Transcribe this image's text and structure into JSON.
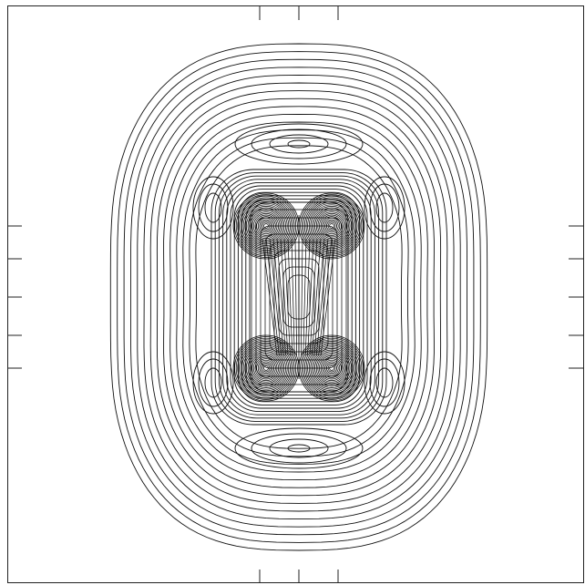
{
  "figure": {
    "kind": "contour-plot",
    "caption": "",
    "description_shown_text": [],
    "colors": {
      "background": "#ffffff",
      "line": "#111111"
    }
  },
  "plot": {
    "outer_contours": 14,
    "inner_contours": 11,
    "lobes": 4,
    "side_minima": 4,
    "axis_minima": 2,
    "core_bands": 9
  }
}
